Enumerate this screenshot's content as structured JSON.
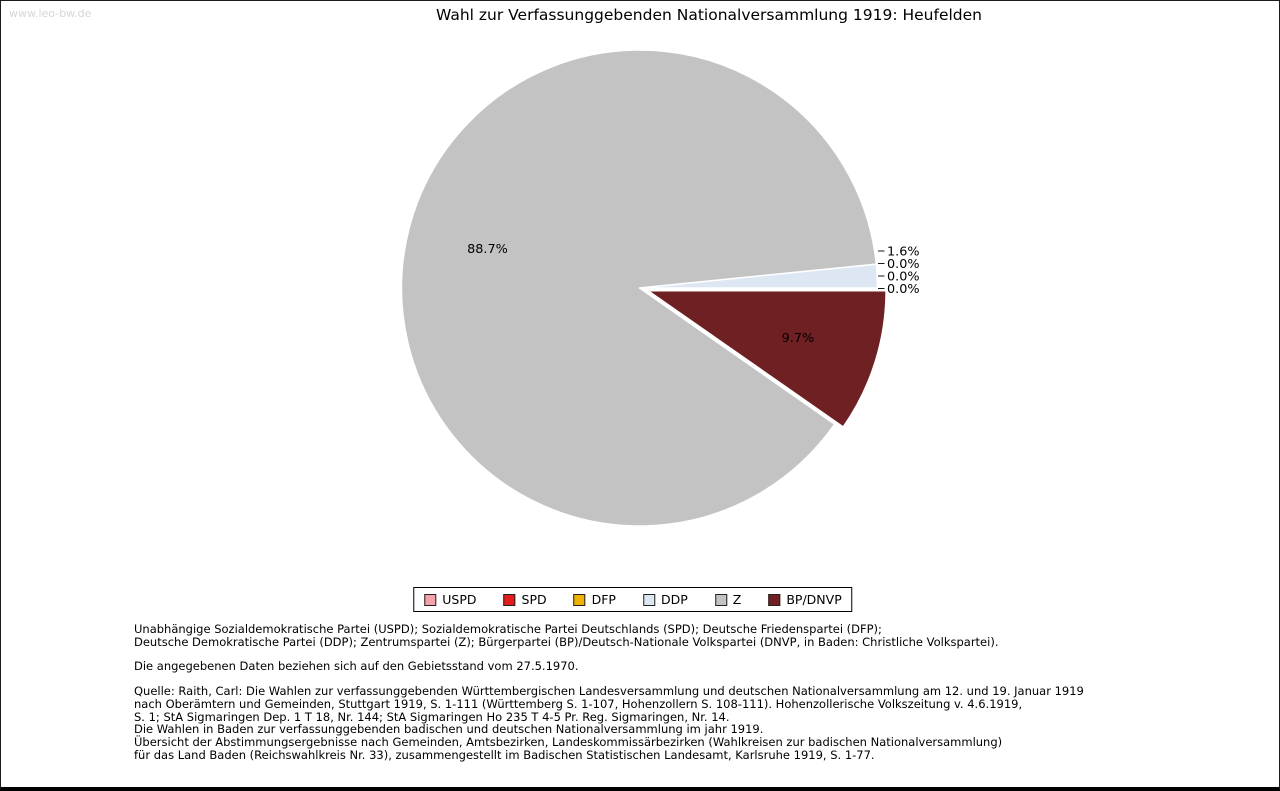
{
  "watermark": "www.leo-bw.de",
  "title": "Wahl zur Verfassunggebenden Nationalversammlung 1919: Heufelden",
  "chart_data": {
    "type": "pie",
    "title": "Wahl zur Verfassunggebenden Nationalversammlung 1919: Heufelden",
    "start_angle_deg": 0,
    "direction": "counterclockwise",
    "legend_position": "bottom",
    "slices": [
      {
        "label": "USPD",
        "value": 0.0,
        "pct_label": "0.0%",
        "color": "#f2a3ac",
        "exploded": false
      },
      {
        "label": "SPD",
        "value": 0.0,
        "pct_label": "0.0%",
        "color": "#e41a1c",
        "exploded": false
      },
      {
        "label": "DFP",
        "value": 0.0,
        "pct_label": "0.0%",
        "color": "#f0b000",
        "exploded": false
      },
      {
        "label": "DDP",
        "value": 1.6,
        "pct_label": "1.6%",
        "color": "#dde7f3",
        "exploded": false
      },
      {
        "label": "Z",
        "value": 88.7,
        "pct_label": "88.7%",
        "color": "#c3c3c3",
        "exploded": false
      },
      {
        "label": "BP/DNVP",
        "value": 9.7,
        "pct_label": "9.7%",
        "color": "#6e2022",
        "exploded": true
      }
    ]
  },
  "footer": {
    "abbreviations": [
      "Unabhängige Sozialdemokratische Partei (USPD); Sozialdemokratische Partei Deutschlands (SPD); Deutsche Friedenspartei (DFP);",
      "Deutsche Demokratische Partei (DDP); Zentrumspartei (Z); Bürgerpartei (BP)/Deutsch-Nationale Volkspartei (DNVP, in Baden: Christliche Volkspartei)."
    ],
    "note": [
      "Die angegebenen Daten beziehen sich auf den Gebietsstand vom 27.5.1970."
    ],
    "source": [
      "Quelle: Raith, Carl: Die Wahlen zur verfassunggebenden Württembergischen Landesversammlung und deutschen Nationalversammlung am 12. und 19. Januar 1919",
      "nach Oberämtern und Gemeinden, Stuttgart 1919, S. 1-111 (Württemberg S. 1-107, Hohenzollern S. 108-111). Hohenzollerische Volkszeitung v. 4.6.1919,",
      "S. 1; StA Sigmaringen Dep. 1 T 18, Nr. 144; StA Sigmaringen Ho 235 T 4-5 Pr. Reg. Sigmaringen, Nr. 14.",
      "Die Wahlen in Baden zur verfassunggebenden badischen und deutschen Nationalversammlung im jahr 1919.",
      "Übersicht der Abstimmungsergebnisse nach Gemeinden, Amtsbezirken, Landeskommissärbezirken (Wahlkreisen zur badischen Nationalversammlung)",
      "für das Land Baden (Reichswahlkreis Nr. 33), zusammengestellt im Badischen Statistischen Landesamt, Karlsruhe 1919, S. 1-77."
    ]
  }
}
